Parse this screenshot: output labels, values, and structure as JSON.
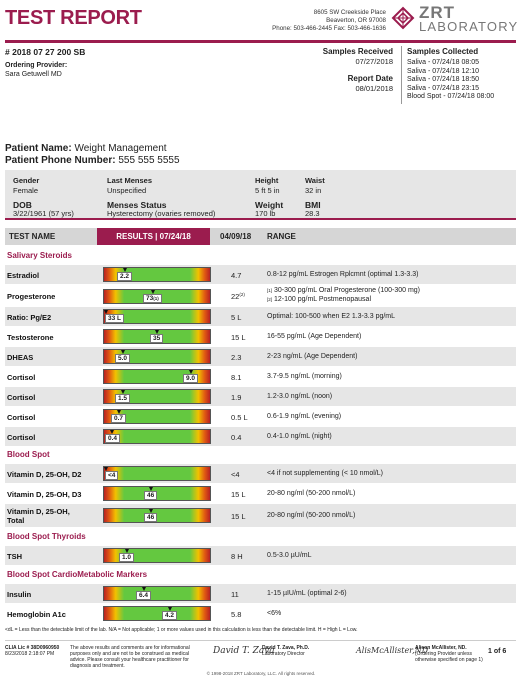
{
  "header": {
    "title": "TEST REPORT",
    "address": [
      "8605 SW Creekside Place",
      "Beaverton, OR 97008",
      "Phone: 503-466-2445 Fax: 503-466-1636"
    ],
    "logo_line1": "ZRT",
    "logo_line2": "LABORATORY",
    "brand_color": "#9b1c4e"
  },
  "accession": "# 2018 07 27 200 SB",
  "provider": {
    "label": "Ordering Provider:",
    "name": "Sara Getuwell MD"
  },
  "samples_received": {
    "label": "Samples Received",
    "value": "07/27/2018"
  },
  "report_date": {
    "label": "Report Date",
    "value": "08/01/2018"
  },
  "samples_collected": {
    "label": "Samples Collected",
    "items": [
      "Saliva - 07/24/18 08:05",
      "Saliva - 07/24/18 12:10",
      "Saliva - 07/24/18 18:50",
      "Saliva - 07/24/18 23:15",
      "Blood Spot - 07/24/18 08:00"
    ]
  },
  "patient": {
    "name_label": "Patient Name:",
    "name": "Weight Management",
    "phone_label": "Patient Phone Number:",
    "phone": "555 555 5555"
  },
  "demographics": {
    "gender_label": "Gender",
    "gender": "Female",
    "last_menses_label": "Last Menses",
    "last_menses": "Unspecified",
    "height_label": "Height",
    "height": "5 ft 5 in",
    "waist_label": "Waist",
    "waist": "32 in",
    "dob_label": "DOB",
    "dob": "3/22/1961 (57 yrs)",
    "menses_status_label": "Menses Status",
    "menses_status": "Hysterectomy (ovaries removed)",
    "weight_label": "Weight",
    "weight": "170 lb",
    "bmi_label": "BMI",
    "bmi": "28.3"
  },
  "table_header": {
    "test_name": "TEST NAME",
    "results": "RESULTS | 07/24/18",
    "previous": "04/09/18",
    "range": "RANGE"
  },
  "sections": {
    "saliva": "Salivary Steroids",
    "blood": "Blood Spot",
    "thyroid": "Blood Spot Thyroids",
    "cardio": "Blood Spot CardioMetabolic Markers"
  },
  "tests": {
    "estradiol": {
      "name": "Estradiol",
      "value": "2.2",
      "position": 0.2,
      "previous": "4.7",
      "range": "0.8-12 pg/mL Estrogen Rplcmnt (optimal 1.3-3.3)"
    },
    "progesterone": {
      "name": "Progesterone",
      "value": "73",
      "value_note": "(1)",
      "position": 0.46,
      "previous": "22",
      "previous_note": "(2)",
      "range_note1": "[1]",
      "range1": "30-300 pg/mL Oral Progesterone (100-300 mg)",
      "range_note2": "[2]",
      "range2": "12-100 pg/mL Postmenopausal"
    },
    "ratio": {
      "name": "Ratio: Pg/E2",
      "value": "33 L",
      "position": 0.02,
      "previous": "5 L",
      "range": "Optimal: 100-500 when E2 1.3-3.3 pg/mL"
    },
    "testosterone": {
      "name": "Testosterone",
      "value": "35",
      "position": 0.5,
      "previous": "15 L",
      "range": "16-55 pg/mL (Age Dependent)"
    },
    "dheas": {
      "name": "DHEAS",
      "value": "5.0",
      "position": 0.18,
      "previous": "2.3",
      "range": "2-23 ng/mL (Age Dependent)"
    },
    "cortisol1": {
      "name": "Cortisol",
      "value": "9.0",
      "position": 0.82,
      "previous": "8.1",
      "range": "3.7-9.5 ng/mL (morning)"
    },
    "cortisol2": {
      "name": "Cortisol",
      "value": "1.5",
      "position": 0.18,
      "previous": "1.9",
      "range": "1.2-3.0 ng/mL (noon)"
    },
    "cortisol3": {
      "name": "Cortisol",
      "value": "0.7",
      "position": 0.14,
      "previous": "0.5 L",
      "range": "0.6-1.9 ng/mL (evening)"
    },
    "cortisol4": {
      "name": "Cortisol",
      "value": "0.4",
      "position": 0.08,
      "previous": "0.4",
      "range": "0.4-1.0 ng/mL (night)"
    },
    "vitd2": {
      "name": "Vitamin D, 25-OH, D2",
      "value": "<4",
      "position": 0.02,
      "previous": "<4",
      "range": "<4 if not supplementing  (< 10 nmol/L)"
    },
    "vitd3": {
      "name": "Vitamin D, 25-OH, D3",
      "value": "46",
      "position": 0.44,
      "previous": "15 L",
      "range": "20-80 ng/ml (50-200 nmol/L)"
    },
    "vitdtotal": {
      "name": "Vitamin D, 25-OH,",
      "name2": "Total",
      "value": "46",
      "position": 0.44,
      "previous": "15 L",
      "range": "20-80 ng/ml (50-200 nmol/L)"
    },
    "tsh": {
      "name": "TSH",
      "value": "1.0",
      "position": 0.22,
      "previous": "8 H",
      "range": "0.5-3.0 µU/mL"
    },
    "insulin": {
      "name": "Insulin",
      "value": "6.4",
      "position": 0.38,
      "previous": "11",
      "range": "1-15 µIU/mL (optimal 2-6)"
    },
    "hba1c": {
      "name": "Hemoglobin A1c",
      "value": "4.2",
      "position": 0.62,
      "previous": "5.8",
      "range": "<6%"
    }
  },
  "legend": "<dL = Less than the detectable limit of the lab.  N/A = Not applicable; 1 or more values used in this calculation is less than the detectable limit.  H = High   L = Low.",
  "footer": {
    "clia": [
      "CLIA Lic # 38D0960950",
      "8/23/2018 2:18:07 PM"
    ],
    "disclaimer": [
      "The above results and comments are for informational",
      "purposes only and are not to be construed as medical",
      "advice. Please consult your healthcare practitioner for",
      "diagnosis and treatment."
    ],
    "director": [
      "David T. Zava, Ph.D.",
      "Laboratory Director"
    ],
    "provider2": [
      "Alison McAllister, ND.",
      "(Ordering Provider unless",
      "otherwise specified on page 1)"
    ],
    "sig1": "David T. Zava",
    "sig2": "AlisMcAllister,ND",
    "page": "1 of 6",
    "copyright": "© 1998-2018 ZRT Laboratory, LLC. All rights reserved."
  }
}
